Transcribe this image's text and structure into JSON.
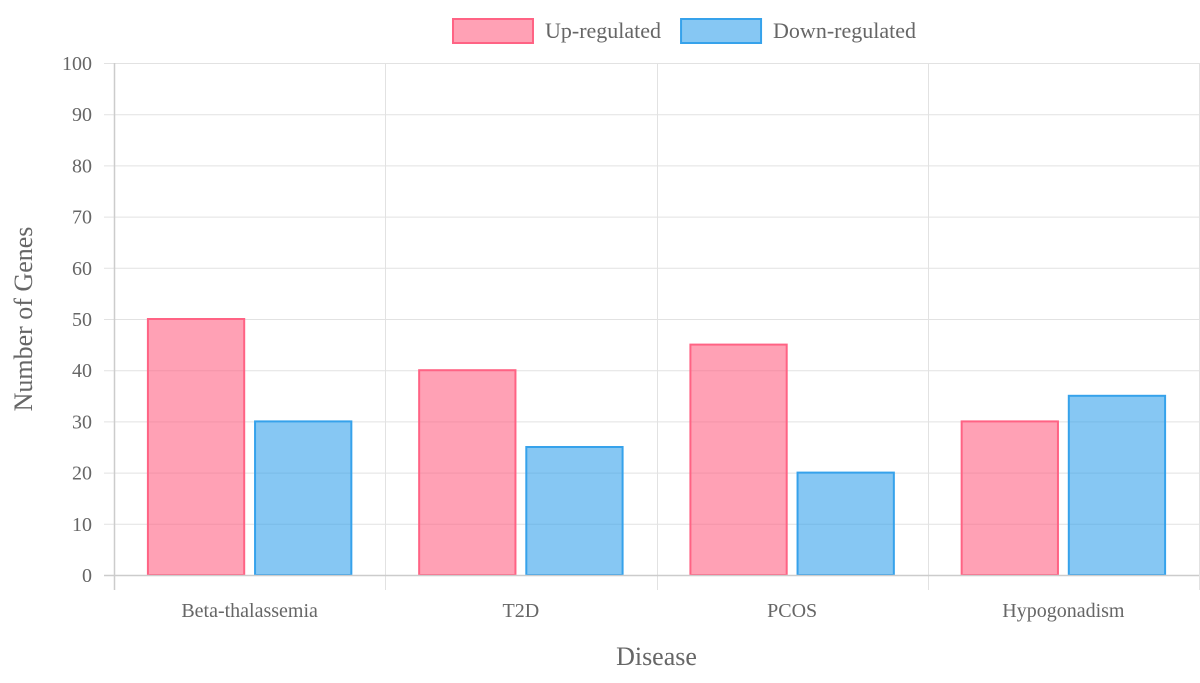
{
  "chart_data": {
    "type": "bar",
    "categories": [
      "Beta-thalassemia",
      "T2D",
      "PCOS",
      "Hypogonadism"
    ],
    "series": [
      {
        "name": "Up-regulated",
        "values": [
          50,
          40,
          45,
          30
        ],
        "fill": "#ff6384",
        "border": "#ff6384"
      },
      {
        "name": "Down-regulated",
        "values": [
          30,
          25,
          20,
          35
        ],
        "fill": "#36a2eb",
        "border": "#36a2eb"
      }
    ],
    "title": "",
    "xlabel": "Disease",
    "ylabel": "Number of Genes",
    "ylim": [
      0,
      100
    ],
    "yticks": [
      0,
      10,
      20,
      30,
      40,
      50,
      60,
      70,
      80,
      90,
      100
    ],
    "grid": true,
    "legend_position": "top"
  }
}
